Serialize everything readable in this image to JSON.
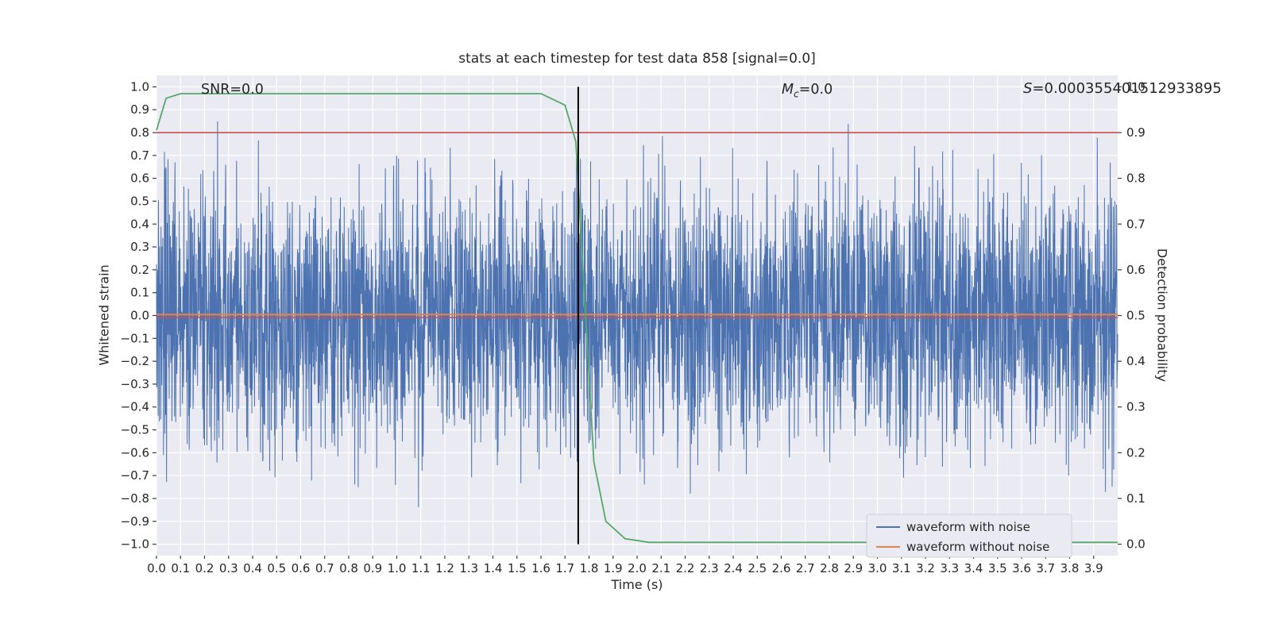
{
  "chart_data": {
    "type": "line",
    "title": "stats at each timestep for test data 858 [signal=0.0]",
    "xlabel": "Time (s)",
    "ylabel_left": "Whitened strain",
    "ylabel_right": "Detection probability",
    "xlim": [
      0.0,
      4.0
    ],
    "ylim_left": [
      -1.05,
      1.05
    ],
    "ylim_right": [
      -0.025,
      1.025
    ],
    "grid": true,
    "background": "#eaeaf2",
    "grid_color": "#ffffff",
    "x_tick_labels": [
      "0.0",
      "0.1",
      "0.2",
      "0.3",
      "0.4",
      "0.5",
      "0.6",
      "0.7",
      "0.8",
      "0.9",
      "1.0",
      "1.1",
      "1.2",
      "1.3",
      "1.4",
      "1.5",
      "1.6",
      "1.7",
      "1.8",
      "1.9",
      "2.0",
      "2.1",
      "2.2",
      "2.3",
      "2.4",
      "2.5",
      "2.6",
      "2.7",
      "2.8",
      "2.9",
      "3.0",
      "3.1",
      "3.2",
      "3.3",
      "3.4",
      "3.5",
      "3.6",
      "3.7",
      "3.8",
      "3.9"
    ],
    "y_tick_labels_left": [
      "1.0",
      "0.9",
      "0.8",
      "0.7",
      "0.6",
      "0.5",
      "0.4",
      "0.3",
      "0.2",
      "0.1",
      "0.0",
      "−0.1",
      "−0.2",
      "−0.3",
      "−0.4",
      "−0.5",
      "−0.6",
      "−0.7",
      "−0.8",
      "−0.9",
      "−1.0"
    ],
    "y_tick_labels_right": [
      "1.0",
      "0.9",
      "0.8",
      "0.7",
      "0.6",
      "0.5",
      "0.4",
      "0.3",
      "0.2",
      "0.1",
      "0.0"
    ],
    "series_noise": {
      "label": "waveform with noise",
      "color": "#4c72b0",
      "seed": 858,
      "points": 4000,
      "std": 0.28,
      "clip": 0.97
    },
    "series_clean": {
      "label": "waveform without noise",
      "color": "#dd8452",
      "value": 0.0
    },
    "detection_probability": {
      "color": "#55a868",
      "axis": "right",
      "points": [
        [
          0.0,
          0.905
        ],
        [
          0.04,
          0.975
        ],
        [
          0.1,
          0.985
        ],
        [
          1.6,
          0.985
        ],
        [
          1.7,
          0.96
        ],
        [
          1.745,
          0.88
        ],
        [
          1.78,
          0.55
        ],
        [
          1.82,
          0.18
        ],
        [
          1.87,
          0.05
        ],
        [
          1.95,
          0.012
        ],
        [
          2.05,
          0.004
        ],
        [
          4.0,
          0.004
        ]
      ]
    },
    "threshold_lines": {
      "color": "#c44e52",
      "axis": "right",
      "values": [
        0.9,
        0.5
      ]
    },
    "event_line": {
      "color": "#000000",
      "x": 1.755,
      "y_span_left_axis": [
        -1.0,
        1.0
      ]
    },
    "annotations": {
      "snr": {
        "text": "SNR=0.0"
      },
      "mc": {
        "symbol": "M",
        "sub": "c",
        "value": "=0.0"
      },
      "s": {
        "symbol": "S",
        "value": "=0.000355401512933895"
      }
    },
    "legend": {
      "position": "lower right",
      "entries": [
        {
          "label": "waveform with noise",
          "color": "#4c72b0"
        },
        {
          "label": "waveform without noise",
          "color": "#dd8452"
        }
      ]
    }
  }
}
